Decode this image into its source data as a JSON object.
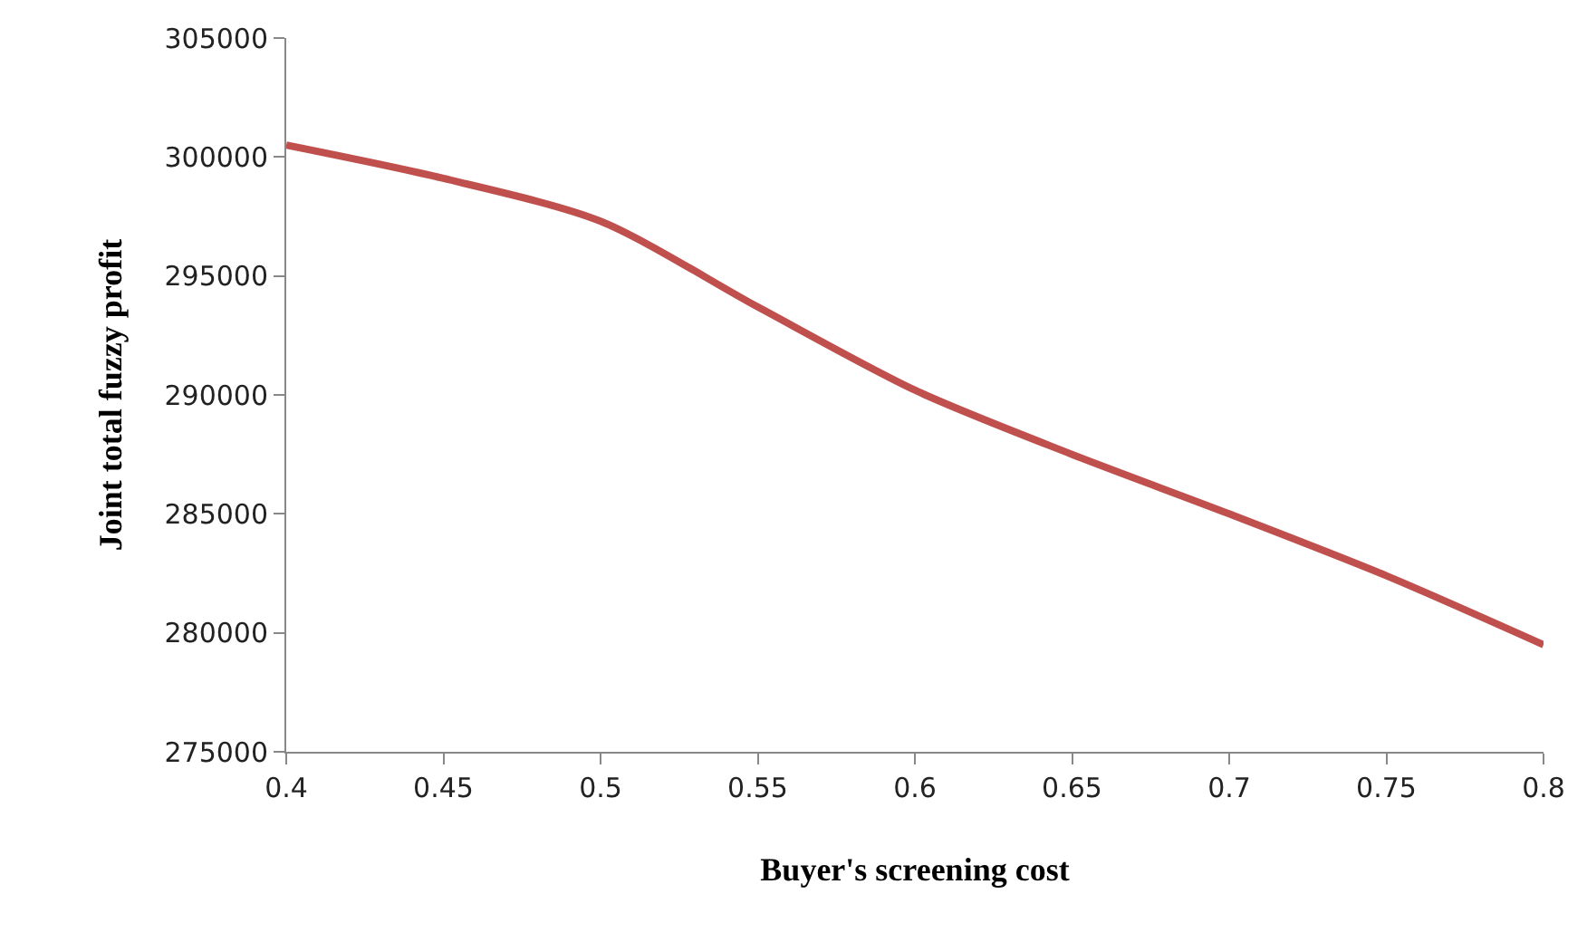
{
  "chart_data": {
    "type": "line",
    "xlabel": "Buyer's screening cost",
    "ylabel": "Joint total fuzzy profit",
    "x": [
      0.4,
      0.45,
      0.5,
      0.55,
      0.6,
      0.65,
      0.7,
      0.75,
      0.8
    ],
    "series": [
      {
        "color": "#c0504d",
        "values": [
          300500,
          299100,
          297300,
          293700,
          290200,
          287500,
          285000,
          282400,
          279500
        ]
      }
    ],
    "xlim": [
      0.4,
      0.8
    ],
    "xticks": [
      0.4,
      0.45,
      0.5,
      0.55,
      0.6,
      0.65,
      0.7,
      0.75,
      0.8
    ],
    "ylim": [
      275000,
      305000
    ],
    "yticks": [
      275000,
      280000,
      285000,
      290000,
      295000,
      300000,
      305000
    ],
    "marker": "none",
    "line_style": "solid"
  }
}
